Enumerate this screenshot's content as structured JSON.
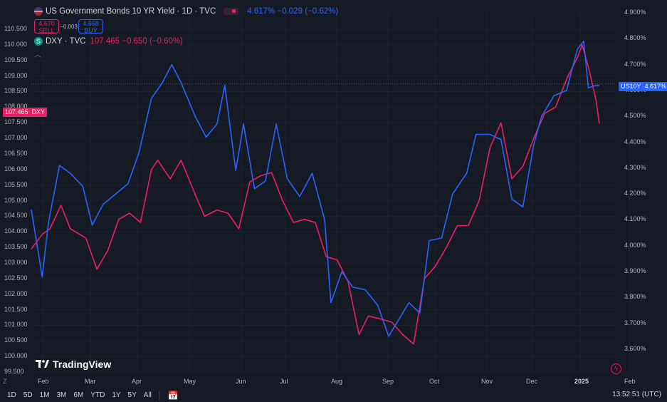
{
  "colors": {
    "background": "#161a25",
    "us10y_line": "#2962ff",
    "dxy_line": "#e91e63",
    "grid": "#1f2330"
  },
  "legend": {
    "us10y": {
      "title": "US Government Bonds 10 YR Yield · 1D · TVC",
      "last": "4.617%",
      "change": "−0.029",
      "change_pct": "(−0.62%)",
      "sell_price": "4.670",
      "sell_label": "SELL",
      "spread": "−0.003",
      "buy_price": "4.668",
      "buy_label": "BUY"
    },
    "dxy": {
      "badge": "S",
      "title": "DXY · TVC",
      "last": "107.465",
      "change": "−0.650",
      "change_pct": "(−0.60%)"
    },
    "collapse_icon": "chevron-up-icon"
  },
  "price_tags": {
    "dxy": {
      "value": "107.465",
      "label": "DXY"
    },
    "us10y": {
      "label": "US10Y",
      "value": "4.617%"
    }
  },
  "branding": "TradingView",
  "bottom_bar": {
    "ranges": [
      "1D",
      "5D",
      "1M",
      "3M",
      "6M",
      "YTD",
      "1Y",
      "5Y",
      "All"
    ],
    "calendar_icon": "calendar-icon",
    "clock": "13:52:51 (UTC)"
  },
  "chart_data": {
    "type": "line",
    "x_ticks": [
      "Feb",
      "Mar",
      "Apr",
      "May",
      "Jun",
      "Jul",
      "Aug",
      "Sep",
      "Oct",
      "Nov",
      "Dec",
      "2025",
      "Feb"
    ],
    "x_range": [
      "2024-01-26",
      "2025-02-04"
    ],
    "left_axis": {
      "series": "DXY",
      "ylim": [
        99.5,
        110.5
      ],
      "ticks": [
        "110.500",
        "110.000",
        "109.500",
        "109.000",
        "108.500",
        "108.000",
        "107.500",
        "107.000",
        "106.500",
        "106.000",
        "105.500",
        "105.000",
        "104.500",
        "104.000",
        "103.500",
        "103.000",
        "102.500",
        "102.000",
        "101.500",
        "101.000",
        "100.500",
        "100.000",
        "99.500"
      ]
    },
    "right_axis": {
      "series": "US10Y",
      "ylim": [
        3.57,
        4.91
      ],
      "ticks": [
        "4.900%",
        "4.800%",
        "4.700%",
        "4.600%",
        "4.500%",
        "4.400%",
        "4.300%",
        "4.200%",
        "4.100%",
        "4.000%",
        "3.900%",
        "3.800%",
        "3.700%",
        "3.600%"
      ]
    },
    "series": [
      {
        "name": "US10Y",
        "axis": "right",
        "color": "#2962ff",
        "points": [
          [
            "2024-01-26",
            4.14
          ],
          [
            "2024-02-02",
            3.88
          ],
          [
            "2024-02-06",
            4.09
          ],
          [
            "2024-02-13",
            4.31
          ],
          [
            "2024-02-20",
            4.28
          ],
          [
            "2024-02-28",
            4.23
          ],
          [
            "2024-03-05",
            4.08
          ],
          [
            "2024-03-12",
            4.16
          ],
          [
            "2024-03-20",
            4.2
          ],
          [
            "2024-03-28",
            4.24
          ],
          [
            "2024-04-04",
            4.36
          ],
          [
            "2024-04-12",
            4.57
          ],
          [
            "2024-04-19",
            4.63
          ],
          [
            "2024-04-25",
            4.7
          ],
          [
            "2024-05-01",
            4.63
          ],
          [
            "2024-05-10",
            4.5
          ],
          [
            "2024-05-17",
            4.42
          ],
          [
            "2024-05-24",
            4.47
          ],
          [
            "2024-05-29",
            4.62
          ],
          [
            "2024-06-05",
            4.29
          ],
          [
            "2024-06-10",
            4.47
          ],
          [
            "2024-06-17",
            4.22
          ],
          [
            "2024-06-24",
            4.25
          ],
          [
            "2024-07-01",
            4.47
          ],
          [
            "2024-07-08",
            4.26
          ],
          [
            "2024-07-16",
            4.19
          ],
          [
            "2024-07-24",
            4.28
          ],
          [
            "2024-08-01",
            4.1
          ],
          [
            "2024-08-05",
            3.78
          ],
          [
            "2024-08-12",
            3.9
          ],
          [
            "2024-08-19",
            3.84
          ],
          [
            "2024-08-27",
            3.83
          ],
          [
            "2024-09-04",
            3.77
          ],
          [
            "2024-09-11",
            3.65
          ],
          [
            "2024-09-18",
            3.72
          ],
          [
            "2024-09-24",
            3.78
          ],
          [
            "2024-10-01",
            3.74
          ],
          [
            "2024-10-07",
            4.02
          ],
          [
            "2024-10-15",
            4.03
          ],
          [
            "2024-10-22",
            4.2
          ],
          [
            "2024-10-31",
            4.28
          ],
          [
            "2024-11-06",
            4.43
          ],
          [
            "2024-11-15",
            4.43
          ],
          [
            "2024-11-22",
            4.41
          ],
          [
            "2024-11-29",
            4.18
          ],
          [
            "2024-12-06",
            4.15
          ],
          [
            "2024-12-13",
            4.39
          ],
          [
            "2024-12-18",
            4.5
          ],
          [
            "2024-12-26",
            4.58
          ],
          [
            "2025-01-03",
            4.6
          ],
          [
            "2025-01-10",
            4.76
          ],
          [
            "2025-01-14",
            4.79
          ],
          [
            "2025-01-17",
            4.61
          ],
          [
            "2025-01-22",
            4.62
          ],
          [
            "2025-01-24",
            4.62
          ]
        ]
      },
      {
        "name": "DXY",
        "axis": "left",
        "color": "#e91e63",
        "points": [
          [
            "2024-01-26",
            103.45
          ],
          [
            "2024-02-02",
            103.92
          ],
          [
            "2024-02-07",
            104.1
          ],
          [
            "2024-02-14",
            104.85
          ],
          [
            "2024-02-20",
            104.1
          ],
          [
            "2024-03-01",
            103.8
          ],
          [
            "2024-03-08",
            102.8
          ],
          [
            "2024-03-15",
            103.4
          ],
          [
            "2024-03-22",
            104.4
          ],
          [
            "2024-03-29",
            104.6
          ],
          [
            "2024-04-05",
            104.3
          ],
          [
            "2024-04-12",
            106.0
          ],
          [
            "2024-04-16",
            106.3
          ],
          [
            "2024-04-24",
            105.7
          ],
          [
            "2024-05-01",
            106.3
          ],
          [
            "2024-05-10",
            105.2
          ],
          [
            "2024-05-16",
            104.5
          ],
          [
            "2024-05-24",
            104.7
          ],
          [
            "2024-05-31",
            104.6
          ],
          [
            "2024-06-07",
            104.1
          ],
          [
            "2024-06-14",
            105.6
          ],
          [
            "2024-06-21",
            105.8
          ],
          [
            "2024-06-28",
            105.9
          ],
          [
            "2024-07-05",
            105.0
          ],
          [
            "2024-07-12",
            104.3
          ],
          [
            "2024-07-19",
            104.4
          ],
          [
            "2024-07-26",
            104.3
          ],
          [
            "2024-08-02",
            103.2
          ],
          [
            "2024-08-09",
            103.1
          ],
          [
            "2024-08-16",
            102.4
          ],
          [
            "2024-08-23",
            100.7
          ],
          [
            "2024-08-29",
            101.3
          ],
          [
            "2024-09-06",
            101.2
          ],
          [
            "2024-09-13",
            101.1
          ],
          [
            "2024-09-20",
            100.7
          ],
          [
            "2024-09-27",
            100.4
          ],
          [
            "2024-10-04",
            102.5
          ],
          [
            "2024-10-11",
            102.9
          ],
          [
            "2024-10-18",
            103.5
          ],
          [
            "2024-10-25",
            104.2
          ],
          [
            "2024-11-01",
            104.2
          ],
          [
            "2024-11-08",
            105.0
          ],
          [
            "2024-11-15",
            106.7
          ],
          [
            "2024-11-22",
            107.5
          ],
          [
            "2024-11-29",
            105.7
          ],
          [
            "2024-12-06",
            106.1
          ],
          [
            "2024-12-13",
            107.0
          ],
          [
            "2024-12-20",
            107.8
          ],
          [
            "2024-12-27",
            108.0
          ],
          [
            "2025-01-03",
            108.9
          ],
          [
            "2025-01-10",
            109.6
          ],
          [
            "2025-01-13",
            110.0
          ],
          [
            "2025-01-17",
            109.3
          ],
          [
            "2025-01-22",
            108.2
          ],
          [
            "2025-01-24",
            107.465
          ]
        ]
      }
    ]
  }
}
